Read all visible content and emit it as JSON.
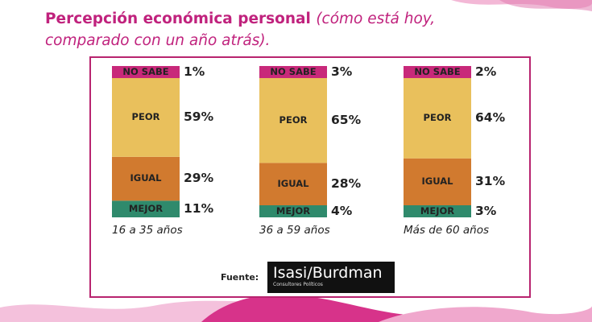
{
  "title": {
    "main": "Percepción económica personal",
    "sub": "(cómo está hoy, comparado con un año atrás)."
  },
  "colors": {
    "accent": "#c0227d",
    "no_sabe": "#c8297a",
    "peor": "#e9c05c",
    "igual": "#d17a2f",
    "mejor": "#2f8a6c"
  },
  "chart_data": {
    "type": "bar",
    "stacked": true,
    "orientation": "vertical",
    "unit": "%",
    "categories": [
      "16 a 35 años",
      "36 a 59 años",
      "Más de 60 años"
    ],
    "series": [
      {
        "name": "MEJOR",
        "values": [
          11,
          4,
          3
        ],
        "labels": [
          "11%",
          "4%",
          "3%"
        ]
      },
      {
        "name": "IGUAL",
        "values": [
          29,
          28,
          31
        ],
        "labels": [
          "29%",
          "28%",
          "31%"
        ]
      },
      {
        "name": "PEOR",
        "values": [
          59,
          65,
          64
        ],
        "labels": [
          "59%",
          "65%",
          "64%"
        ]
      },
      {
        "name": "NO SABE",
        "values": [
          1,
          3,
          2
        ],
        "labels": [
          "1%",
          "3%",
          "2%"
        ]
      }
    ]
  },
  "footer": {
    "source_label": "Fuente:",
    "logo_text": "Isasi/Burdman",
    "logo_subtext": "Consultores Políticos"
  }
}
